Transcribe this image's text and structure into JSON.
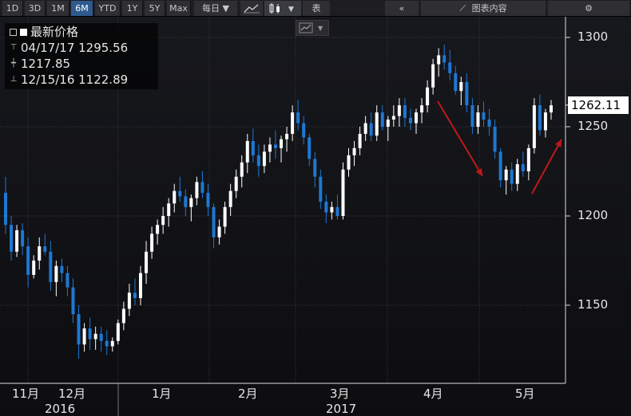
{
  "toolbar": {
    "ranges": [
      "1D",
      "3D",
      "1M",
      "6M",
      "YTD",
      "1Y",
      "5Y",
      "Max"
    ],
    "active_range": "6M",
    "frequency": "每日",
    "table_label": "表",
    "sidebar_label": "图表内容"
  },
  "legend": {
    "title": "最新价格",
    "high": "04/17/17 1295.56",
    "mid": "1217.85",
    "low": "12/15/16 1122.89"
  },
  "last_price": "1262.11",
  "colors": {
    "up": "#ffffff",
    "down": "#1e78d2",
    "arrow": "#c0181b",
    "grid": "#3b3b45",
    "bg": "#101014"
  },
  "chart_data": {
    "type": "candlestick",
    "y_ticks": [
      "1300",
      "1250",
      "1200",
      "1150"
    ],
    "ylim": [
      1110,
      1310
    ],
    "x_month_labels": [
      "11月",
      "12月",
      "1月",
      "2月",
      "3月",
      "4月",
      "5月"
    ],
    "year_labels": [
      "2016",
      "2017"
    ],
    "series": [
      [
        1213,
        1222,
        1190,
        1195
      ],
      [
        1195,
        1200,
        1175,
        1180
      ],
      [
        1180,
        1195,
        1177,
        1192
      ],
      [
        1192,
        1196,
        1178,
        1183
      ],
      [
        1183,
        1188,
        1160,
        1167
      ],
      [
        1167,
        1178,
        1165,
        1175
      ],
      [
        1175,
        1188,
        1170,
        1183
      ],
      [
        1183,
        1190,
        1178,
        1180
      ],
      [
        1180,
        1186,
        1158,
        1163
      ],
      [
        1163,
        1175,
        1155,
        1172
      ],
      [
        1172,
        1176,
        1163,
        1168
      ],
      [
        1168,
        1172,
        1155,
        1160
      ],
      [
        1160,
        1165,
        1140,
        1145
      ],
      [
        1145,
        1150,
        1120,
        1128
      ],
      [
        1128,
        1140,
        1124,
        1137
      ],
      [
        1137,
        1143,
        1125,
        1131
      ],
      [
        1131,
        1138,
        1125,
        1134
      ],
      [
        1134,
        1138,
        1124,
        1130
      ],
      [
        1130,
        1136,
        1122,
        1127
      ],
      [
        1127,
        1132,
        1124,
        1130
      ],
      [
        1130,
        1142,
        1128,
        1140
      ],
      [
        1140,
        1152,
        1136,
        1148
      ],
      [
        1148,
        1162,
        1144,
        1157
      ],
      [
        1157,
        1165,
        1150,
        1154
      ],
      [
        1154,
        1172,
        1150,
        1168
      ],
      [
        1168,
        1186,
        1162,
        1180
      ],
      [
        1180,
        1194,
        1176,
        1190
      ],
      [
        1190,
        1198,
        1184,
        1195
      ],
      [
        1195,
        1205,
        1190,
        1200
      ],
      [
        1200,
        1210,
        1194,
        1207
      ],
      [
        1207,
        1218,
        1202,
        1214
      ],
      [
        1214,
        1222,
        1208,
        1211
      ],
      [
        1211,
        1215,
        1200,
        1205
      ],
      [
        1205,
        1212,
        1197,
        1210
      ],
      [
        1210,
        1222,
        1206,
        1219
      ],
      [
        1219,
        1225,
        1210,
        1213
      ],
      [
        1213,
        1218,
        1200,
        1205
      ],
      [
        1205,
        1207,
        1182,
        1188
      ],
      [
        1188,
        1198,
        1184,
        1194
      ],
      [
        1194,
        1208,
        1190,
        1205
      ],
      [
        1205,
        1218,
        1200,
        1214
      ],
      [
        1214,
        1226,
        1210,
        1222
      ],
      [
        1222,
        1234,
        1216,
        1230
      ],
      [
        1230,
        1246,
        1224,
        1242
      ],
      [
        1242,
        1249,
        1230,
        1234
      ],
      [
        1234,
        1240,
        1222,
        1228
      ],
      [
        1228,
        1240,
        1224,
        1236
      ],
      [
        1236,
        1244,
        1230,
        1240
      ],
      [
        1240,
        1248,
        1232,
        1238
      ],
      [
        1238,
        1245,
        1230,
        1243
      ],
      [
        1243,
        1250,
        1236,
        1246
      ],
      [
        1246,
        1262,
        1242,
        1258
      ],
      [
        1258,
        1265,
        1248,
        1252
      ],
      [
        1252,
        1256,
        1240,
        1244
      ],
      [
        1244,
        1246,
        1228,
        1232
      ],
      [
        1232,
        1236,
        1216,
        1222
      ],
      [
        1222,
        1226,
        1204,
        1208
      ],
      [
        1208,
        1212,
        1196,
        1202
      ],
      [
        1202,
        1208,
        1198,
        1205
      ],
      [
        1205,
        1212,
        1198,
        1200
      ],
      [
        1200,
        1230,
        1198,
        1226
      ],
      [
        1226,
        1238,
        1222,
        1234
      ],
      [
        1234,
        1242,
        1228,
        1238
      ],
      [
        1238,
        1250,
        1234,
        1246
      ],
      [
        1246,
        1256,
        1242,
        1252
      ],
      [
        1252,
        1258,
        1242,
        1245
      ],
      [
        1245,
        1262,
        1242,
        1258
      ],
      [
        1258,
        1262,
        1248,
        1250
      ],
      [
        1250,
        1256,
        1242,
        1254
      ],
      [
        1254,
        1262,
        1250,
        1256
      ],
      [
        1256,
        1266,
        1250,
        1262
      ],
      [
        1262,
        1266,
        1250,
        1255
      ],
      [
        1255,
        1260,
        1248,
        1252
      ],
      [
        1252,
        1260,
        1246,
        1258
      ],
      [
        1258,
        1266,
        1252,
        1262
      ],
      [
        1262,
        1276,
        1258,
        1272
      ],
      [
        1272,
        1288,
        1268,
        1285
      ],
      [
        1285,
        1294,
        1278,
        1290
      ],
      [
        1290,
        1296,
        1282,
        1286
      ],
      [
        1286,
        1293,
        1276,
        1280
      ],
      [
        1280,
        1284,
        1268,
        1270
      ],
      [
        1270,
        1278,
        1262,
        1275
      ],
      [
        1275,
        1280,
        1258,
        1262
      ],
      [
        1262,
        1266,
        1246,
        1250
      ],
      [
        1250,
        1262,
        1246,
        1258
      ],
      [
        1258,
        1264,
        1250,
        1254
      ],
      [
        1254,
        1260,
        1245,
        1250
      ],
      [
        1250,
        1254,
        1232,
        1236
      ],
      [
        1236,
        1238,
        1216,
        1220
      ],
      [
        1220,
        1228,
        1212,
        1226
      ],
      [
        1226,
        1230,
        1214,
        1218
      ],
      [
        1218,
        1232,
        1214,
        1229
      ],
      [
        1229,
        1236,
        1222,
        1225
      ],
      [
        1225,
        1240,
        1220,
        1238
      ],
      [
        1238,
        1266,
        1235,
        1262
      ],
      [
        1262,
        1268,
        1245,
        1248
      ],
      [
        1248,
        1260,
        1244,
        1258
      ],
      [
        1258,
        1265,
        1254,
        1262
      ]
    ]
  }
}
